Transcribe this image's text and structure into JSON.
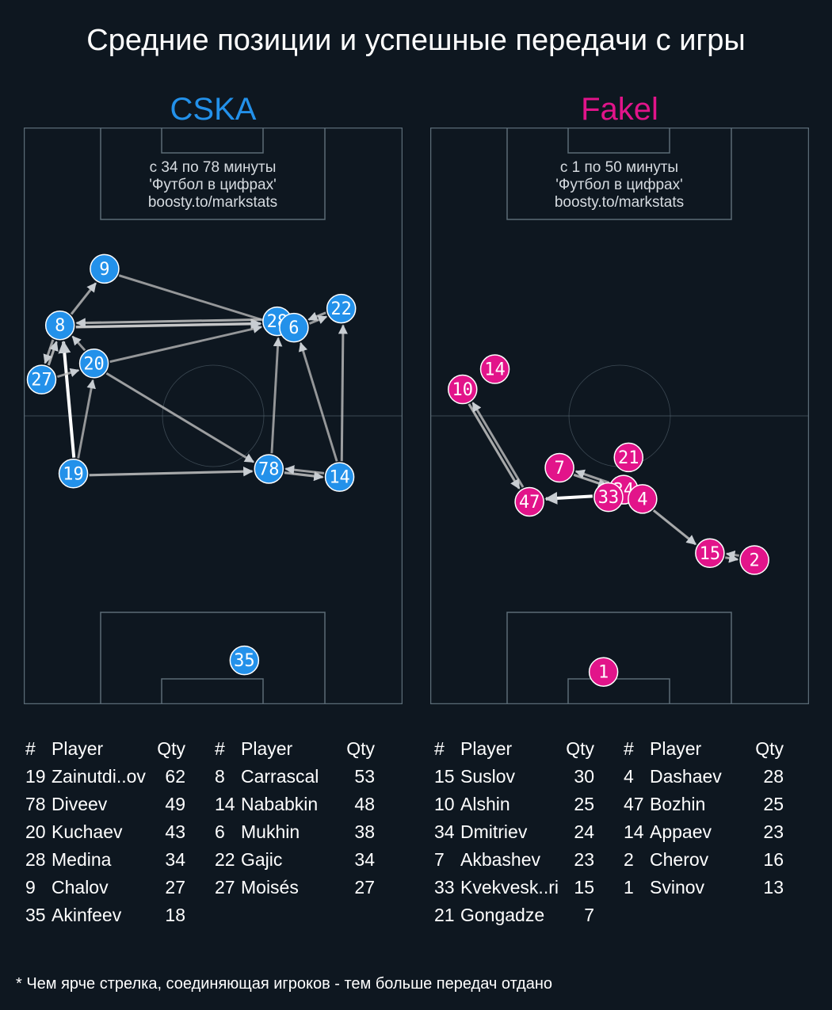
{
  "title": "Средние позиции и успешные передачи с игры",
  "footnote": "* Чем ярче стрелка, соединяющая игроков - тем больше передач отдано",
  "table_headers": {
    "num": "#",
    "player": "Player",
    "qty": "Qty"
  },
  "chart_data": [
    {
      "type": "network",
      "team": "CSKA",
      "color": "#2391ea",
      "caption": [
        "с 34 по 78 минуты",
        "'Футбол в цифрах'",
        "boosty.to/markstats"
      ],
      "pitch": {
        "length": 100,
        "width": 68
      },
      "players": [
        {
          "num": 9,
          "name": "Chalov",
          "qty": 27,
          "x": 75.5,
          "y": 14.5
        },
        {
          "num": 8,
          "name": "Carrascal",
          "qty": 53,
          "x": 65.7,
          "y": 6.5
        },
        {
          "num": 28,
          "name": "Medina",
          "qty": 34,
          "x": 66.4,
          "y": 45.5
        },
        {
          "num": 6,
          "name": "Mukhin",
          "qty": 38,
          "x": 65.3,
          "y": 48.5
        },
        {
          "num": 22,
          "name": "Gajic",
          "qty": 34,
          "x": 68.6,
          "y": 57.0
        },
        {
          "num": 20,
          "name": "Kuchaev",
          "qty": 43,
          "x": 59.1,
          "y": 12.6
        },
        {
          "num": 27,
          "name": "Moisés",
          "qty": 27,
          "x": 56.3,
          "y": 3.2
        },
        {
          "num": 19,
          "name": "Zainutdi..ov",
          "qty": 62,
          "x": 40.0,
          "y": 8.9
        },
        {
          "num": 78,
          "name": "Diveev",
          "qty": 49,
          "x": 40.8,
          "y": 44.0
        },
        {
          "num": 14,
          "name": "Nababkin",
          "qty": 48,
          "x": 39.4,
          "y": 56.7
        },
        {
          "num": 35,
          "name": "Akinfeev",
          "qty": 18,
          "x": 7.6,
          "y": 39.6
        }
      ],
      "passes": [
        {
          "from": 19,
          "to": 8,
          "strength": 1.0
        },
        {
          "from": 8,
          "to": 28,
          "strength": 0.75
        },
        {
          "from": 28,
          "to": 8,
          "strength": 0.6
        },
        {
          "from": 8,
          "to": 9,
          "strength": 0.55
        },
        {
          "from": 9,
          "to": 6,
          "strength": 0.5
        },
        {
          "from": 27,
          "to": 8,
          "strength": 0.6
        },
        {
          "from": 8,
          "to": 27,
          "strength": 0.55
        },
        {
          "from": 27,
          "to": 20,
          "strength": 0.5
        },
        {
          "from": 20,
          "to": 8,
          "strength": 0.5
        },
        {
          "from": 20,
          "to": 28,
          "strength": 0.5
        },
        {
          "from": 19,
          "to": 20,
          "strength": 0.5
        },
        {
          "from": 19,
          "to": 78,
          "strength": 0.6
        },
        {
          "from": 20,
          "to": 78,
          "strength": 0.55
        },
        {
          "from": 78,
          "to": 28,
          "strength": 0.5
        },
        {
          "from": 78,
          "to": 14,
          "strength": 0.6
        },
        {
          "from": 14,
          "to": 78,
          "strength": 0.55
        },
        {
          "from": 14,
          "to": 22,
          "strength": 0.55
        },
        {
          "from": 14,
          "to": 6,
          "strength": 0.5
        },
        {
          "from": 22,
          "to": 6,
          "strength": 0.55
        },
        {
          "from": 6,
          "to": 22,
          "strength": 0.5
        },
        {
          "from": 28,
          "to": 6,
          "strength": 0.5
        }
      ]
    },
    {
      "type": "network",
      "team": "Fakel",
      "color": "#e2148a",
      "caption": [
        "с 1 по 50 минуты",
        "'Футбол в цифрах'",
        "boosty.to/markstats"
      ],
      "pitch": {
        "length": 100,
        "width": 68
      },
      "players": [
        {
          "num": 15,
          "name": "Suslov",
          "qty": 30,
          "x": 26.2,
          "y": 50.2
        },
        {
          "num": 10,
          "name": "Alshin",
          "qty": 25,
          "x": 54.6,
          "y": 5.8
        },
        {
          "num": 34,
          "name": "Dmitriev",
          "qty": 24,
          "x": 37.2,
          "y": 34.7
        },
        {
          "num": 7,
          "name": "Akbashev",
          "qty": 23,
          "x": 41.0,
          "y": 23.2
        },
        {
          "num": 33,
          "name": "Kvekvesk..ri",
          "qty": 15,
          "x": 35.9,
          "y": 32.0
        },
        {
          "num": 21,
          "name": "Gongadze",
          "qty": 7,
          "x": 42.8,
          "y": 35.6
        },
        {
          "num": 4,
          "name": "Dashaev",
          "qty": 28,
          "x": 35.6,
          "y": 38.1
        },
        {
          "num": 47,
          "name": "Bozhin",
          "qty": 25,
          "x": 35.1,
          "y": 17.8
        },
        {
          "num": 14,
          "name": "Appaev",
          "qty": 23,
          "x": 58.1,
          "y": 11.6
        },
        {
          "num": 2,
          "name": "Cherov",
          "qty": 16,
          "x": 25.0,
          "y": 58.2
        },
        {
          "num": 1,
          "name": "Svinov",
          "qty": 13,
          "x": 5.6,
          "y": 31.1
        }
      ],
      "passes": [
        {
          "from": 33,
          "to": 47,
          "strength": 1.0
        },
        {
          "from": 10,
          "to": 47,
          "strength": 0.6
        },
        {
          "from": 47,
          "to": 10,
          "strength": 0.55
        },
        {
          "from": 7,
          "to": 34,
          "strength": 0.6
        },
        {
          "from": 34,
          "to": 7,
          "strength": 0.55
        },
        {
          "from": 4,
          "to": 15,
          "strength": 0.6
        },
        {
          "from": 15,
          "to": 2,
          "strength": 0.55
        },
        {
          "from": 2,
          "to": 15,
          "strength": 0.5
        }
      ]
    }
  ],
  "tables": {
    "home": [
      [
        {
          "num": "19",
          "name": "Zainutdi..ov",
          "qty": "62"
        },
        {
          "num": "78",
          "name": "Diveev",
          "qty": "49"
        },
        {
          "num": "20",
          "name": "Kuchaev",
          "qty": "43"
        },
        {
          "num": "28",
          "name": "Medina",
          "qty": "34"
        },
        {
          "num": "9",
          "name": "Chalov",
          "qty": "27"
        },
        {
          "num": "35",
          "name": "Akinfeev",
          "qty": "18"
        }
      ],
      [
        {
          "num": "8",
          "name": "Carrascal",
          "qty": "53"
        },
        {
          "num": "14",
          "name": "Nababkin",
          "qty": "48"
        },
        {
          "num": "6",
          "name": "Mukhin",
          "qty": "38"
        },
        {
          "num": "22",
          "name": "Gajic",
          "qty": "34"
        },
        {
          "num": "27",
          "name": "Moisés",
          "qty": "27"
        }
      ]
    ],
    "away": [
      [
        {
          "num": "15",
          "name": "Suslov",
          "qty": "30"
        },
        {
          "num": "10",
          "name": "Alshin",
          "qty": "25"
        },
        {
          "num": "34",
          "name": "Dmitriev",
          "qty": "24"
        },
        {
          "num": "7",
          "name": "Akbashev",
          "qty": "23"
        },
        {
          "num": "33",
          "name": "Kvekvesk..ri",
          "qty": "15"
        },
        {
          "num": "21",
          "name": "Gongadze",
          "qty": "7"
        }
      ],
      [
        {
          "num": "4",
          "name": "Dashaev",
          "qty": "28"
        },
        {
          "num": "47",
          "name": "Bozhin",
          "qty": "25"
        },
        {
          "num": "14",
          "name": "Appaev",
          "qty": "23"
        },
        {
          "num": "2",
          "name": "Cherov",
          "qty": "16"
        },
        {
          "num": "1",
          "name": "Svinov",
          "qty": "13"
        }
      ]
    ]
  }
}
